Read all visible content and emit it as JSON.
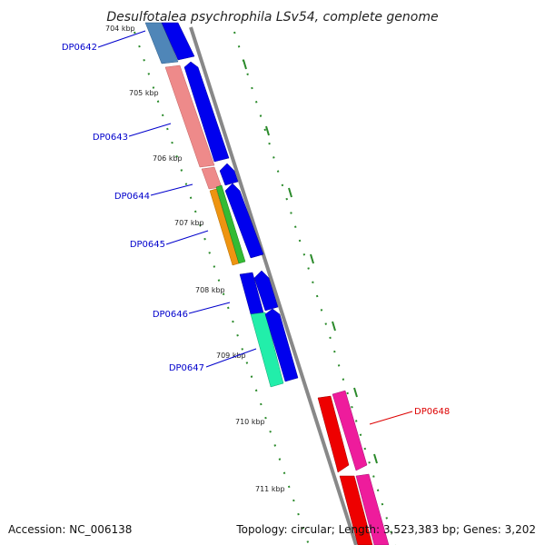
{
  "title": "Desulfotalea psychrophila LSv54, complete genome",
  "footer": {
    "accession": "Accession: NC_006138",
    "topology": "Topology: circular; Length: 3,523,383 bp; Genes: 3,202"
  },
  "ticks": [
    {
      "label": "704 kbp",
      "kb": 704
    },
    {
      "label": "705 kbp",
      "kb": 705
    },
    {
      "label": "706 kbp",
      "kb": 706
    },
    {
      "label": "707 kbp",
      "kb": 707
    },
    {
      "label": "708 kbp",
      "kb": 708
    },
    {
      "label": "709 kbp",
      "kb": 709
    },
    {
      "label": "710 kbp",
      "kb": 710
    },
    {
      "label": "711 kbp",
      "kb": 711
    }
  ],
  "genes": [
    {
      "name": "DP0642",
      "color": "#0000cc"
    },
    {
      "name": "DP0643",
      "color": "#0000cc"
    },
    {
      "name": "DP0644",
      "color": "#0000cc"
    },
    {
      "name": "DP0645",
      "color": "#0000cc"
    },
    {
      "name": "DP0646",
      "color": "#0000cc"
    },
    {
      "name": "DP0647",
      "color": "#0000cc"
    },
    {
      "name": "DP0648",
      "color": "#dd0000"
    }
  ],
  "colors": {
    "backbone": "#888888",
    "forward_cds": "#0000ee",
    "tick_marks": "#2a8a2a",
    "steelblue": "#4f86b8",
    "salmon": "#ee8a8a",
    "orange": "#ee9411",
    "green": "#33bb33",
    "aquamarine": "#22eeaa",
    "red": "#ee0000",
    "pink": "#ee1c9c"
  }
}
